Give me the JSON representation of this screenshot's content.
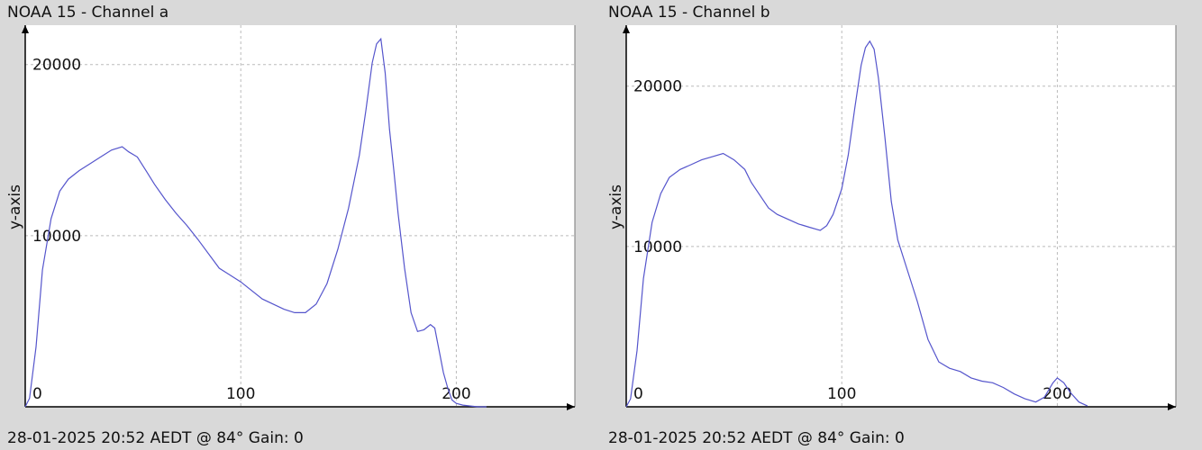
{
  "chart_data": [
    {
      "type": "line",
      "title": "NOAA 15 - Channel a",
      "footer": "28-01-2025 20:52 AEDT @ 84° Gain: 0",
      "ylabel": "y-axis",
      "xlabel": "",
      "xlim": [
        0,
        255
      ],
      "ylim": [
        0,
        22300
      ],
      "x_ticks": [
        0,
        100,
        200
      ],
      "y_ticks": [
        10000,
        20000
      ],
      "grid": true,
      "line_color": "#5555cc",
      "series": [
        {
          "x": [
            0,
            2,
            5,
            8,
            12,
            16,
            20,
            25,
            30,
            35,
            40,
            45,
            48,
            52,
            56,
            60,
            65,
            70,
            75,
            80,
            90,
            100,
            110,
            120,
            125,
            130,
            135,
            140,
            145,
            150,
            155,
            158,
            161,
            163,
            165,
            167,
            169,
            171,
            173,
            176,
            179,
            182,
            185,
            188,
            190,
            192,
            194,
            196,
            198,
            200,
            203,
            206,
            210,
            214
          ],
          "y": [
            0,
            500,
            3500,
            8000,
            11000,
            12600,
            13300,
            13800,
            14200,
            14600,
            15000,
            15200,
            14900,
            14600,
            13800,
            13000,
            12100,
            11300,
            10600,
            9800,
            8100,
            7300,
            6300,
            5700,
            5500,
            5500,
            6000,
            7200,
            9200,
            11600,
            14700,
            17300,
            20100,
            21200,
            21500,
            19500,
            16200,
            13800,
            11300,
            8100,
            5500,
            4400,
            4500,
            4800,
            4600,
            3300,
            2000,
            1100,
            400,
            200,
            100,
            50,
            0,
            0
          ]
        }
      ]
    },
    {
      "type": "line",
      "title": "NOAA 15 - Channel b",
      "footer": "28-01-2025 20:52 AEDT @ 84° Gain: 0",
      "ylabel": "y-axis",
      "xlabel": "",
      "xlim": [
        0,
        255
      ],
      "ylim": [
        0,
        23800
      ],
      "x_ticks": [
        0,
        100,
        200
      ],
      "y_ticks": [
        10000,
        20000
      ],
      "grid": true,
      "line_color": "#5555cc",
      "series": [
        {
          "x": [
            0,
            2,
            5,
            8,
            12,
            16,
            20,
            25,
            30,
            35,
            40,
            45,
            50,
            55,
            58,
            62,
            66,
            70,
            75,
            80,
            85,
            90,
            93,
            96,
            100,
            103,
            106,
            109,
            111,
            113,
            115,
            117,
            120,
            123,
            126,
            130,
            135,
            140,
            145,
            150,
            155,
            160,
            165,
            170,
            175,
            180,
            185,
            190,
            194,
            198,
            200,
            203,
            206,
            210,
            214
          ],
          "y": [
            0,
            500,
            3500,
            8000,
            11500,
            13300,
            14300,
            14800,
            15100,
            15400,
            15600,
            15800,
            15400,
            14800,
            14000,
            13200,
            12400,
            12000,
            11700,
            11400,
            11200,
            11000,
            11300,
            12000,
            13600,
            15700,
            18600,
            21300,
            22400,
            22800,
            22300,
            20500,
            16800,
            12800,
            10400,
            8700,
            6600,
            4200,
            2800,
            2400,
            2200,
            1800,
            1600,
            1500,
            1200,
            800,
            500,
            300,
            600,
            1500,
            1800,
            1500,
            900,
            300,
            50
          ]
        }
      ]
    }
  ]
}
